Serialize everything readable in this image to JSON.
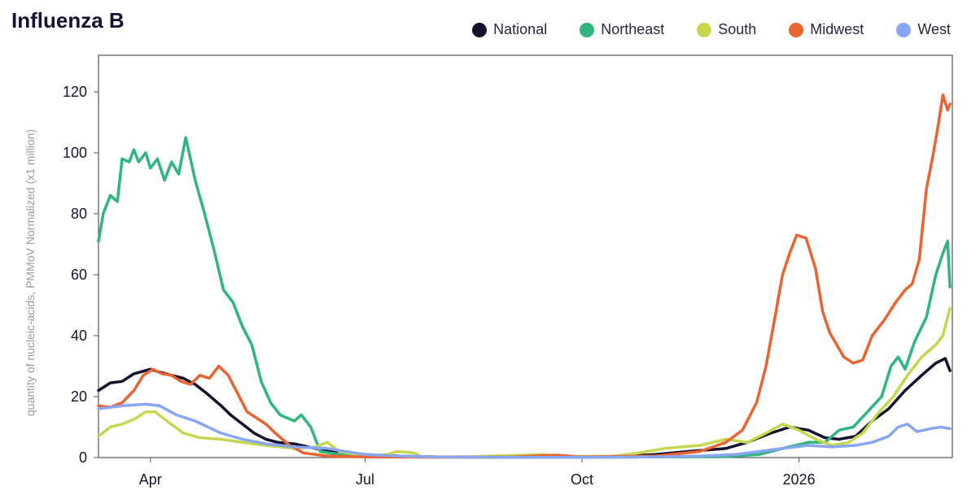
{
  "chart_data": {
    "type": "line",
    "title": "Influenza B",
    "ylabel": "quantity of nucleic-acids, PMMoV Normalized (x1 million)",
    "xlabel": "",
    "ylim": [
      0,
      132
    ],
    "xlim": [
      "2025-03-10",
      "2026-03-07"
    ],
    "yticks": [
      0,
      20,
      40,
      60,
      80,
      100,
      120
    ],
    "xticks": [
      {
        "date": "2025-04-01",
        "label": "Apr"
      },
      {
        "date": "2025-07-01",
        "label": "Jul"
      },
      {
        "date": "2025-10-01",
        "label": "Oct"
      },
      {
        "date": "2026-01-01",
        "label": "2026"
      }
    ],
    "legend_position": "top-right",
    "grid": false,
    "series": [
      {
        "name": "National",
        "color": "#14102e",
        "points": [
          [
            "2025-03-10",
            22
          ],
          [
            "2025-03-15",
            24.5
          ],
          [
            "2025-03-20",
            25
          ],
          [
            "2025-03-25",
            27.5
          ],
          [
            "2025-04-01",
            29
          ],
          [
            "2025-04-05",
            28
          ],
          [
            "2025-04-10",
            27
          ],
          [
            "2025-04-15",
            26
          ],
          [
            "2025-04-20",
            24
          ],
          [
            "2025-04-25",
            21
          ],
          [
            "2025-05-01",
            17
          ],
          [
            "2025-05-05",
            14
          ],
          [
            "2025-05-10",
            11
          ],
          [
            "2025-05-15",
            8
          ],
          [
            "2025-05-20",
            6
          ],
          [
            "2025-05-25",
            5
          ],
          [
            "2025-06-01",
            4.5
          ],
          [
            "2025-06-10",
            3
          ],
          [
            "2025-06-20",
            2
          ],
          [
            "2025-07-01",
            1
          ],
          [
            "2025-07-15",
            0.5
          ],
          [
            "2025-08-01",
            0.2
          ],
          [
            "2025-09-01",
            0.1
          ],
          [
            "2025-10-01",
            0.2
          ],
          [
            "2025-10-20",
            0.5
          ],
          [
            "2025-11-01",
            1
          ],
          [
            "2025-11-15",
            2
          ],
          [
            "2025-12-01",
            3
          ],
          [
            "2025-12-10",
            5
          ],
          [
            "2025-12-20",
            8
          ],
          [
            "2025-12-28",
            10
          ],
          [
            "2026-01-05",
            9
          ],
          [
            "2026-01-12",
            6.5
          ],
          [
            "2026-01-18",
            6
          ],
          [
            "2026-01-25",
            7
          ],
          [
            "2026-02-01",
            12
          ],
          [
            "2026-02-08",
            16
          ],
          [
            "2026-02-15",
            22
          ],
          [
            "2026-02-22",
            27
          ],
          [
            "2026-02-28",
            31
          ],
          [
            "2026-03-04",
            32.5
          ],
          [
            "2026-03-06",
            28.5
          ]
        ]
      },
      {
        "name": "Northeast",
        "color": "#2eb67d",
        "points": [
          [
            "2025-03-10",
            71
          ],
          [
            "2025-03-12",
            80
          ],
          [
            "2025-03-15",
            86
          ],
          [
            "2025-03-18",
            84
          ],
          [
            "2025-03-20",
            98
          ],
          [
            "2025-03-23",
            97
          ],
          [
            "2025-03-25",
            101
          ],
          [
            "2025-03-27",
            97
          ],
          [
            "2025-03-30",
            100
          ],
          [
            "2025-04-01",
            95
          ],
          [
            "2025-04-04",
            98
          ],
          [
            "2025-04-07",
            91
          ],
          [
            "2025-04-10",
            97
          ],
          [
            "2025-04-13",
            93
          ],
          [
            "2025-04-16",
            105
          ],
          [
            "2025-04-20",
            91
          ],
          [
            "2025-04-24",
            80
          ],
          [
            "2025-04-28",
            68
          ],
          [
            "2025-05-02",
            55
          ],
          [
            "2025-05-06",
            51
          ],
          [
            "2025-05-10",
            43
          ],
          [
            "2025-05-14",
            37
          ],
          [
            "2025-05-18",
            25
          ],
          [
            "2025-05-22",
            18
          ],
          [
            "2025-05-26",
            14
          ],
          [
            "2025-06-01",
            12
          ],
          [
            "2025-06-04",
            14
          ],
          [
            "2025-06-08",
            10
          ],
          [
            "2025-06-12",
            2
          ],
          [
            "2025-06-20",
            1
          ],
          [
            "2025-07-01",
            0.5
          ],
          [
            "2025-08-01",
            0.2
          ],
          [
            "2025-09-01",
            0.1
          ],
          [
            "2025-10-01",
            0.1
          ],
          [
            "2025-11-01",
            0.2
          ],
          [
            "2025-12-01",
            0.3
          ],
          [
            "2025-12-15",
            1
          ],
          [
            "2025-12-25",
            3
          ],
          [
            "2026-01-05",
            5
          ],
          [
            "2026-01-12",
            5
          ],
          [
            "2026-01-18",
            9
          ],
          [
            "2026-01-24",
            10
          ],
          [
            "2026-01-30",
            15
          ],
          [
            "2026-02-05",
            20
          ],
          [
            "2026-02-09",
            30
          ],
          [
            "2026-02-12",
            33
          ],
          [
            "2026-02-15",
            29
          ],
          [
            "2026-02-19",
            38
          ],
          [
            "2026-02-24",
            46
          ],
          [
            "2026-02-28",
            60
          ],
          [
            "2026-03-03",
            67
          ],
          [
            "2026-03-05",
            71
          ],
          [
            "2026-03-06",
            56
          ]
        ]
      },
      {
        "name": "South",
        "color": "#c7d64f",
        "points": [
          [
            "2025-03-10",
            7
          ],
          [
            "2025-03-15",
            10
          ],
          [
            "2025-03-20",
            11
          ],
          [
            "2025-03-25",
            12.5
          ],
          [
            "2025-03-30",
            15
          ],
          [
            "2025-04-03",
            15
          ],
          [
            "2025-04-08",
            12
          ],
          [
            "2025-04-15",
            8
          ],
          [
            "2025-04-22",
            6.5
          ],
          [
            "2025-05-01",
            6
          ],
          [
            "2025-05-10",
            5
          ],
          [
            "2025-05-20",
            4
          ],
          [
            "2025-06-01",
            3
          ],
          [
            "2025-06-10",
            3.5
          ],
          [
            "2025-06-15",
            5
          ],
          [
            "2025-06-20",
            2
          ],
          [
            "2025-07-01",
            0.5
          ],
          [
            "2025-07-10",
            1
          ],
          [
            "2025-07-15",
            2
          ],
          [
            "2025-07-22",
            1.5
          ],
          [
            "2025-07-25",
            0.2
          ],
          [
            "2025-08-15",
            0.3
          ],
          [
            "2025-09-15",
            1
          ],
          [
            "2025-09-22",
            0.3
          ],
          [
            "2025-10-15",
            0.5
          ],
          [
            "2025-10-25",
            1.5
          ],
          [
            "2025-11-05",
            3
          ],
          [
            "2025-11-20",
            4
          ],
          [
            "2025-12-01",
            6
          ],
          [
            "2025-12-10",
            5
          ],
          [
            "2025-12-18",
            8
          ],
          [
            "2025-12-25",
            11
          ],
          [
            "2026-01-01",
            9
          ],
          [
            "2026-01-08",
            6
          ],
          [
            "2026-01-15",
            4
          ],
          [
            "2026-01-22",
            5
          ],
          [
            "2026-01-28",
            8
          ],
          [
            "2026-02-04",
            15
          ],
          [
            "2026-02-10",
            20
          ],
          [
            "2026-02-16",
            27
          ],
          [
            "2026-02-22",
            33
          ],
          [
            "2026-02-28",
            37
          ],
          [
            "2026-03-03",
            40
          ],
          [
            "2026-03-06",
            49
          ]
        ]
      },
      {
        "name": "Midwest",
        "color": "#ea6432",
        "points": [
          [
            "2025-03-10",
            17
          ],
          [
            "2025-03-15",
            16.5
          ],
          [
            "2025-03-20",
            18
          ],
          [
            "2025-03-25",
            22
          ],
          [
            "2025-03-29",
            27
          ],
          [
            "2025-04-02",
            29
          ],
          [
            "2025-04-06",
            27.5
          ],
          [
            "2025-04-10",
            27
          ],
          [
            "2025-04-14",
            25
          ],
          [
            "2025-04-18",
            24
          ],
          [
            "2025-04-22",
            27
          ],
          [
            "2025-04-26",
            26
          ],
          [
            "2025-04-30",
            30
          ],
          [
            "2025-05-04",
            27
          ],
          [
            "2025-05-08",
            21
          ],
          [
            "2025-05-12",
            15
          ],
          [
            "2025-05-16",
            13
          ],
          [
            "2025-05-20",
            11
          ],
          [
            "2025-05-24",
            8
          ],
          [
            "2025-05-30",
            4
          ],
          [
            "2025-06-05",
            1.5
          ],
          [
            "2025-06-15",
            0.5
          ],
          [
            "2025-07-01",
            0.2
          ],
          [
            "2025-08-01",
            0.1
          ],
          [
            "2025-09-01",
            0.2
          ],
          [
            "2025-09-20",
            0.8
          ],
          [
            "2025-10-01",
            0.2
          ],
          [
            "2025-11-01",
            0.5
          ],
          [
            "2025-11-20",
            2
          ],
          [
            "2025-12-01",
            5
          ],
          [
            "2025-12-08",
            9
          ],
          [
            "2025-12-14",
            18
          ],
          [
            "2025-12-18",
            30
          ],
          [
            "2025-12-22",
            47
          ],
          [
            "2025-12-25",
            60
          ],
          [
            "2025-12-28",
            67
          ],
          [
            "2025-12-31",
            73
          ],
          [
            "2026-01-04",
            72
          ],
          [
            "2026-01-08",
            62
          ],
          [
            "2026-01-11",
            48
          ],
          [
            "2026-01-14",
            41
          ],
          [
            "2026-01-17",
            37
          ],
          [
            "2026-01-20",
            33
          ],
          [
            "2026-01-24",
            31
          ],
          [
            "2026-01-28",
            32
          ],
          [
            "2026-02-01",
            40
          ],
          [
            "2026-02-06",
            45
          ],
          [
            "2026-02-11",
            51
          ],
          [
            "2026-02-15",
            55
          ],
          [
            "2026-02-18",
            57
          ],
          [
            "2026-02-21",
            65
          ],
          [
            "2026-02-24",
            88
          ],
          [
            "2026-02-27",
            100
          ],
          [
            "2026-03-01",
            109
          ],
          [
            "2026-03-03",
            119
          ],
          [
            "2026-03-05",
            114
          ],
          [
            "2026-03-06",
            116
          ]
        ]
      },
      {
        "name": "West",
        "color": "#89a6f4",
        "points": [
          [
            "2025-03-10",
            16
          ],
          [
            "2025-03-20",
            17
          ],
          [
            "2025-03-30",
            17.5
          ],
          [
            "2025-04-05",
            17
          ],
          [
            "2025-04-12",
            14
          ],
          [
            "2025-04-20",
            12
          ],
          [
            "2025-05-01",
            8
          ],
          [
            "2025-05-10",
            6
          ],
          [
            "2025-05-20",
            4.5
          ],
          [
            "2025-06-01",
            3.5
          ],
          [
            "2025-06-15",
            3
          ],
          [
            "2025-07-01",
            1
          ],
          [
            "2025-07-15",
            0.5
          ],
          [
            "2025-08-01",
            0.2
          ],
          [
            "2025-09-01",
            0.1
          ],
          [
            "2025-10-01",
            0.1
          ],
          [
            "2025-11-01",
            0.2
          ],
          [
            "2025-11-20",
            0.5
          ],
          [
            "2025-12-05",
            1
          ],
          [
            "2025-12-15",
            2
          ],
          [
            "2025-12-25",
            3
          ],
          [
            "2026-01-05",
            4
          ],
          [
            "2026-01-15",
            3.5
          ],
          [
            "2026-01-25",
            4
          ],
          [
            "2026-02-01",
            5
          ],
          [
            "2026-02-08",
            7
          ],
          [
            "2026-02-12",
            10
          ],
          [
            "2026-02-16",
            11
          ],
          [
            "2026-02-20",
            8.5
          ],
          [
            "2026-02-26",
            9.5
          ],
          [
            "2026-03-02",
            10
          ],
          [
            "2026-03-06",
            9.5
          ]
        ]
      }
    ]
  }
}
